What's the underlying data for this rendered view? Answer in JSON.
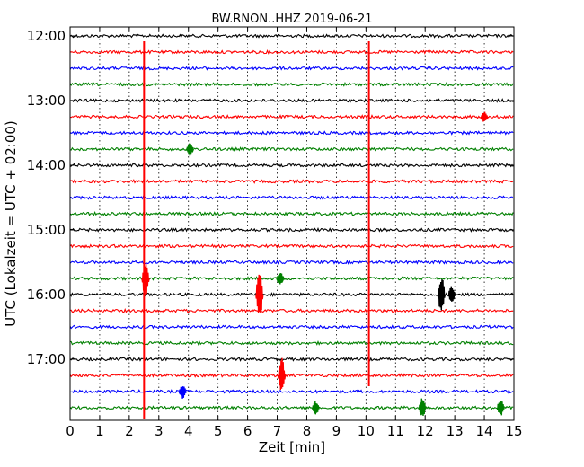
{
  "chart_data": {
    "type": "line",
    "title": "BW.RNON..HHZ 2019-06-21",
    "xlabel": "Zeit  [min]",
    "ylabel": "UTC (Lokalzeit = UTC + 02:00)",
    "xlim": [
      0,
      15
    ],
    "x_ticks": [
      "0",
      "1",
      "2",
      "3",
      "4",
      "5",
      "6",
      "7",
      "8",
      "9",
      "10",
      "11",
      "12",
      "13",
      "14",
      "15"
    ],
    "y_tick_labels": [
      "12:00",
      "13:00",
      "14:00",
      "15:00",
      "16:00",
      "17:00"
    ],
    "y_tick_rows": [
      0,
      4,
      8,
      12,
      16,
      20
    ],
    "row_interval_min": 15,
    "rows": 24,
    "row_colors": [
      "#000000",
      "#ff0000",
      "#0000ff",
      "#008000"
    ],
    "grid": true,
    "events": [
      {
        "minute": 2.5,
        "row_start": 1,
        "row_end": 23,
        "color": "#ff0000"
      },
      {
        "minute": 10.1,
        "row_start": 1,
        "row_end": 21,
        "color": "#ff0000"
      },
      {
        "minute": 2.55,
        "row": 15,
        "amp": 22,
        "color": "#ff0000"
      },
      {
        "minute": 6.4,
        "row": 16,
        "amp": 30,
        "color": "#ff0000"
      },
      {
        "minute": 7.15,
        "row": 21,
        "amp": 20,
        "color": "#ff0000"
      },
      {
        "minute": 12.55,
        "row": 16,
        "amp": 22,
        "color": "#000000"
      },
      {
        "minute": 12.9,
        "row": 16,
        "amp": 10,
        "color": "#000000"
      },
      {
        "minute": 3.8,
        "row": 22,
        "amp": 8,
        "color": "#0000ff"
      },
      {
        "minute": 4.05,
        "row": 7,
        "amp": 8,
        "color": "#008000"
      },
      {
        "minute": 7.1,
        "row": 15,
        "amp": 8,
        "color": "#008000"
      },
      {
        "minute": 8.3,
        "row": 23,
        "amp": 8,
        "color": "#008000"
      },
      {
        "minute": 11.9,
        "row": 23,
        "amp": 12,
        "color": "#008000"
      },
      {
        "minute": 14.55,
        "row": 23,
        "amp": 10,
        "color": "#008000"
      },
      {
        "minute": 14.0,
        "row": 5,
        "amp": 6,
        "color": "#ff0000"
      }
    ]
  }
}
